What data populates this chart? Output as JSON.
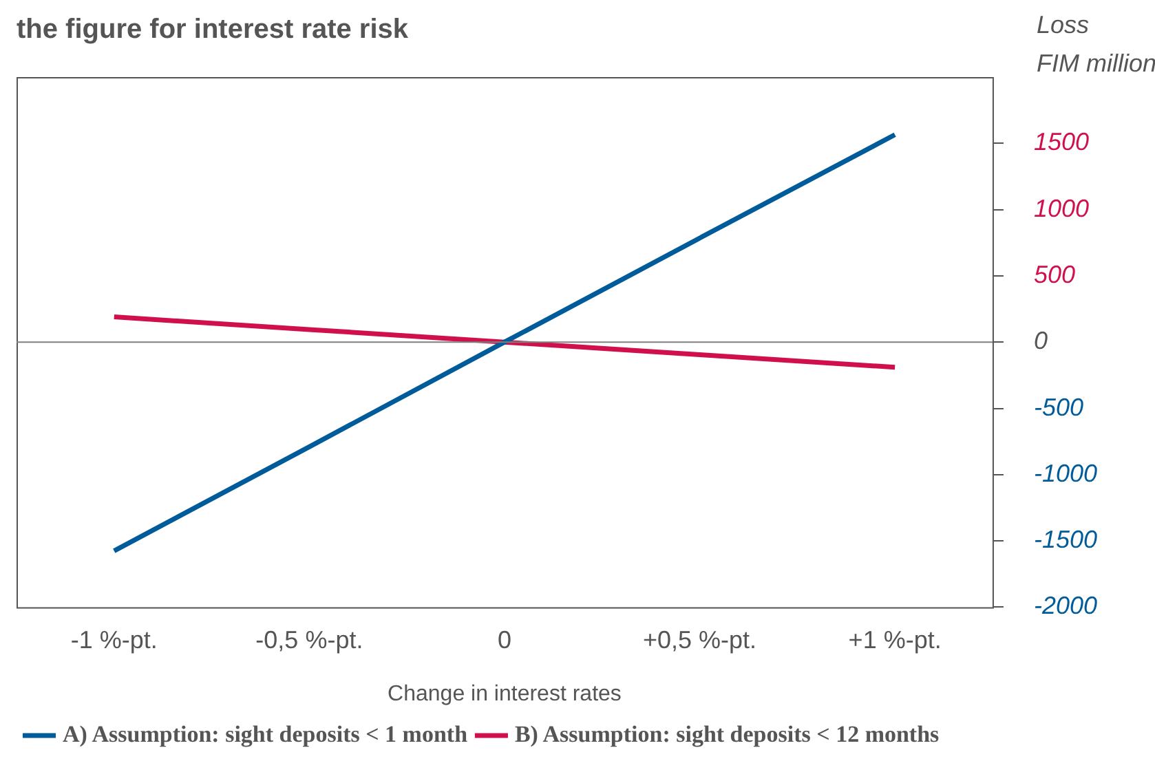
{
  "chart_data": {
    "type": "line",
    "title": "the figure for interest rate risk",
    "xlabel": "Change in interest rates",
    "ylabel": "Loss\nFIM million",
    "categories": [
      "-1 %-pt.",
      "-0,5 %-pt.",
      "0",
      "+0,5 %-pt.",
      "+1 %-pt."
    ],
    "series": [
      {
        "name": "A) Assumption: sight deposits < 1 month",
        "color": "#005b9a",
        "values": [
          -1575,
          -790,
          0,
          785,
          1565
        ]
      },
      {
        "name": "B) Assumption: sight deposits < 12 months",
        "color": "#d0104c",
        "values": [
          190,
          95,
          0,
          -95,
          -190
        ]
      }
    ],
    "ylim": [
      -2000,
      2000
    ],
    "yticks": [
      -2000,
      -1500,
      -1000,
      -500,
      0,
      500,
      1000,
      1500
    ],
    "ref_lines": [
      {
        "axis": "y",
        "value": 0,
        "color": "#7f7f7f"
      }
    ],
    "grid": false,
    "legend": "bottom",
    "marker": "none",
    "line_style": "solid"
  }
}
